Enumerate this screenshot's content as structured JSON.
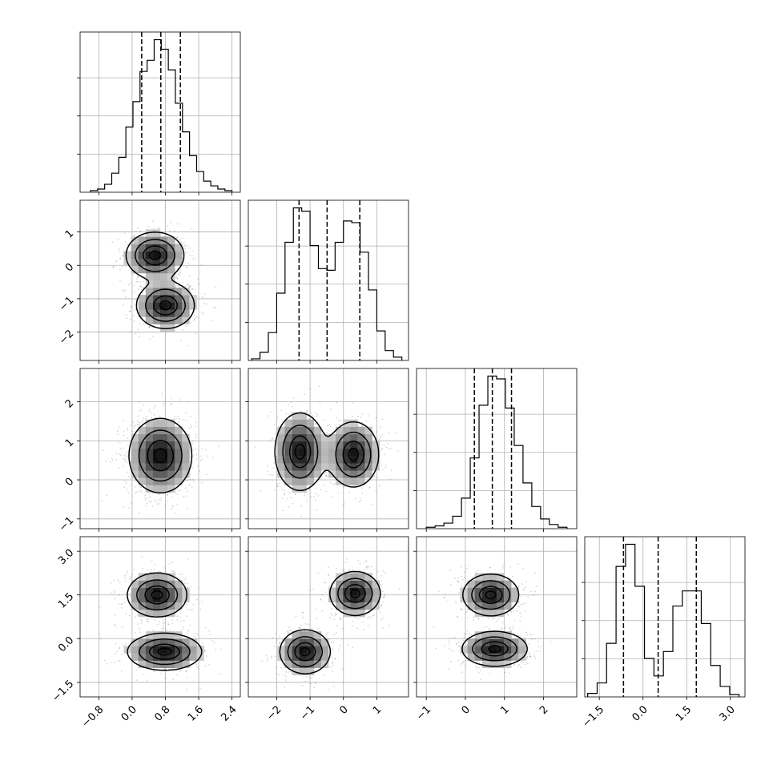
{
  "chart_data": {
    "type": "corner",
    "dimensions": 4,
    "axis_ranges": [
      [
        -1.25,
        2.6
      ],
      [
        -2.85,
        1.95
      ],
      [
        -1.25,
        2.85
      ],
      [
        -2.0,
        3.5
      ]
    ],
    "ticks": [
      {
        "values": [
          -0.8,
          0.0,
          0.8,
          1.6,
          2.4
        ],
        "labels": [
          "−0.8",
          "0.0",
          "0.8",
          "1.6",
          "2.4"
        ]
      },
      {
        "values": [
          -2,
          -1,
          0,
          1
        ],
        "labels": [
          "−2",
          "−1",
          "0",
          "1"
        ]
      },
      {
        "values": [
          -1,
          0,
          1,
          2
        ],
        "labels": [
          "−1",
          "0",
          "1",
          "2"
        ]
      },
      {
        "values": [
          -1.5,
          0.0,
          1.5,
          3.0
        ],
        "labels": [
          "−1.5",
          "0.0",
          "1.5",
          "3.0"
        ]
      }
    ],
    "quantiles": [
      [
        0.23,
        0.69,
        1.16
      ],
      [
        -1.33,
        -0.49,
        0.49
      ],
      [
        0.23,
        0.69,
        1.18
      ],
      [
        -0.67,
        0.52,
        1.83
      ]
    ],
    "histograms": [
      {
        "edges_range": [
          -1.0,
          2.4
        ],
        "counts": [
          1,
          2,
          5,
          12,
          22,
          41,
          57,
          76,
          83,
          96,
          90,
          77,
          56,
          38,
          23,
          13,
          7,
          4,
          2,
          1
        ]
      },
      {
        "edges_range": [
          -2.75,
          1.75
        ],
        "counts": [
          1,
          5,
          17,
          41,
          72,
          93,
          91,
          70,
          56,
          55,
          72,
          85,
          84,
          66,
          43,
          18,
          6,
          2
        ]
      },
      {
        "edges_range": [
          -1.0,
          2.6
        ],
        "counts": [
          1,
          2,
          4,
          9,
          22,
          51,
          89,
          110,
          108,
          87,
          60,
          33,
          16,
          7,
          3,
          1
        ]
      },
      {
        "edges_range": [
          -1.9,
          3.3
        ],
        "counts": [
          3,
          12,
          46,
          112,
          131,
          95,
          33,
          18,
          39,
          78,
          91,
          91,
          63,
          27,
          9,
          2
        ]
      }
    ],
    "pairs": [
      {
        "row": 1,
        "col": 0,
        "clusters": [
          {
            "mx": 0.55,
            "my": 0.3,
            "sx": 0.35,
            "sy": 0.35
          },
          {
            "mx": 0.8,
            "my": -1.2,
            "sx": 0.35,
            "sy": 0.35
          }
        ]
      },
      {
        "row": 2,
        "col": 0,
        "clusters": [
          {
            "mx": 0.68,
            "my": 0.62,
            "sx": 0.38,
            "sy": 0.48
          }
        ]
      },
      {
        "row": 2,
        "col": 1,
        "clusters": [
          {
            "mx": -1.3,
            "my": 0.72,
            "sx": 0.38,
            "sy": 0.5
          },
          {
            "mx": 0.3,
            "my": 0.65,
            "sx": 0.38,
            "sy": 0.42
          }
        ]
      },
      {
        "row": 3,
        "col": 0,
        "clusters": [
          {
            "mx": 0.6,
            "my": 1.5,
            "sx": 0.36,
            "sy": 0.38
          },
          {
            "mx": 0.78,
            "my": -0.45,
            "sx": 0.45,
            "sy": 0.32
          }
        ]
      },
      {
        "row": 3,
        "col": 1,
        "clusters": [
          {
            "mx": -1.15,
            "my": -0.45,
            "sx": 0.38,
            "sy": 0.38
          },
          {
            "mx": 0.35,
            "my": 1.55,
            "sx": 0.38,
            "sy": 0.38
          }
        ]
      },
      {
        "row": 3,
        "col": 2,
        "clusters": [
          {
            "mx": 0.65,
            "my": 1.5,
            "sx": 0.36,
            "sy": 0.36
          },
          {
            "mx": 0.75,
            "my": -0.35,
            "sx": 0.42,
            "sy": 0.3
          }
        ]
      }
    ],
    "grid": true,
    "legend": "none"
  }
}
